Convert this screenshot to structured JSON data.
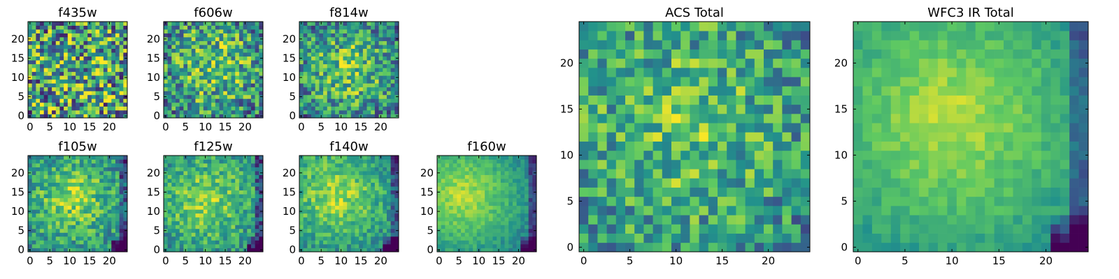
{
  "colormap": [
    "#440154",
    "#3b528b",
    "#21918c",
    "#5ec962",
    "#fde725"
  ],
  "chart_data": [
    {
      "type": "heatmap",
      "title": "f435w",
      "xticks": [
        "0",
        "5",
        "10",
        "15",
        "20"
      ],
      "yticks": [
        "0",
        "5",
        "10",
        "15",
        "20"
      ],
      "xlim": [
        -0.5,
        24.5
      ],
      "ylim": [
        -0.5,
        24.5
      ],
      "grid": false,
      "center": [
        12,
        12
      ],
      "radius": 20,
      "strength": 0.25,
      "noise": 0.6,
      "hole": false
    },
    {
      "type": "heatmap",
      "title": "f606w",
      "xticks": [
        "0",
        "5",
        "10",
        "15",
        "20"
      ],
      "yticks": [
        "0",
        "5",
        "10",
        "15",
        "20"
      ],
      "xlim": [
        -0.5,
        24.5
      ],
      "ylim": [
        -0.5,
        24.5
      ],
      "grid": false,
      "center": [
        12,
        13
      ],
      "radius": 14,
      "strength": 0.45,
      "noise": 0.45,
      "hole": false
    },
    {
      "type": "heatmap",
      "title": "f814w",
      "xticks": [
        "0",
        "5",
        "10",
        "15",
        "20"
      ],
      "yticks": [
        "0",
        "5",
        "10",
        "15",
        "20"
      ],
      "xlim": [
        -0.5,
        24.5
      ],
      "ylim": [
        -0.5,
        24.5
      ],
      "grid": false,
      "center": [
        12,
        12
      ],
      "radius": 13,
      "strength": 0.5,
      "noise": 0.4,
      "hole": false
    },
    {
      "type": "heatmap",
      "title": "f105w",
      "xticks": [
        "0",
        "5",
        "10",
        "15",
        "20"
      ],
      "yticks": [
        "0",
        "5",
        "10",
        "15",
        "20"
      ],
      "xlim": [
        -0.5,
        24.5
      ],
      "ylim": [
        -0.5,
        24.5
      ],
      "grid": false,
      "center": [
        11,
        13
      ],
      "radius": 15,
      "strength": 0.6,
      "noise": 0.28,
      "hole": true
    },
    {
      "type": "heatmap",
      "title": "f125w",
      "xticks": [
        "0",
        "5",
        "10",
        "15",
        "20"
      ],
      "yticks": [
        "0",
        "5",
        "10",
        "15",
        "20"
      ],
      "xlim": [
        -0.5,
        24.5
      ],
      "ylim": [
        -0.5,
        24.5
      ],
      "grid": false,
      "center": [
        10,
        13
      ],
      "radius": 16,
      "strength": 0.6,
      "noise": 0.25,
      "hole": true
    },
    {
      "type": "heatmap",
      "title": "f140w",
      "xticks": [
        "0",
        "5",
        "10",
        "15",
        "20"
      ],
      "yticks": [
        "0",
        "5",
        "10",
        "15",
        "20"
      ],
      "xlim": [
        -0.5,
        24.5
      ],
      "ylim": [
        -0.5,
        24.5
      ],
      "grid": false,
      "center": [
        9,
        14
      ],
      "radius": 16,
      "strength": 0.65,
      "noise": 0.22,
      "hole": true
    },
    {
      "type": "heatmap",
      "title": "f160w",
      "xticks": [
        "0",
        "5",
        "10",
        "15",
        "20"
      ],
      "yticks": [
        "0",
        "5",
        "10",
        "15",
        "20"
      ],
      "xlim": [
        -0.5,
        24.5
      ],
      "ylim": [
        -0.5,
        24.5
      ],
      "grid": false,
      "center": [
        6,
        14
      ],
      "radius": 17,
      "strength": 0.7,
      "noise": 0.12,
      "hole": true
    },
    {
      "type": "heatmap",
      "title": "ACS Total",
      "xticks": [
        "0",
        "5",
        "10",
        "15",
        "20"
      ],
      "yticks": [
        "0",
        "5",
        "10",
        "15",
        "20"
      ],
      "xlim": [
        -0.5,
        24.5
      ],
      "ylim": [
        -0.5,
        24.5
      ],
      "grid": false,
      "center": [
        11,
        13
      ],
      "radius": 16,
      "strength": 0.45,
      "noise": 0.35,
      "hole": false
    },
    {
      "type": "heatmap",
      "title": "WFC3 IR Total",
      "xticks": [
        "0",
        "5",
        "10",
        "15",
        "20"
      ],
      "yticks": [
        "0",
        "5",
        "10",
        "15",
        "20"
      ],
      "xlim": [
        -0.5,
        24.5
      ],
      "ylim": [
        -0.5,
        24.5
      ],
      "grid": false,
      "center": [
        10,
        14
      ],
      "radius": 18,
      "strength": 0.7,
      "noise": 0.1,
      "hole": true
    }
  ]
}
